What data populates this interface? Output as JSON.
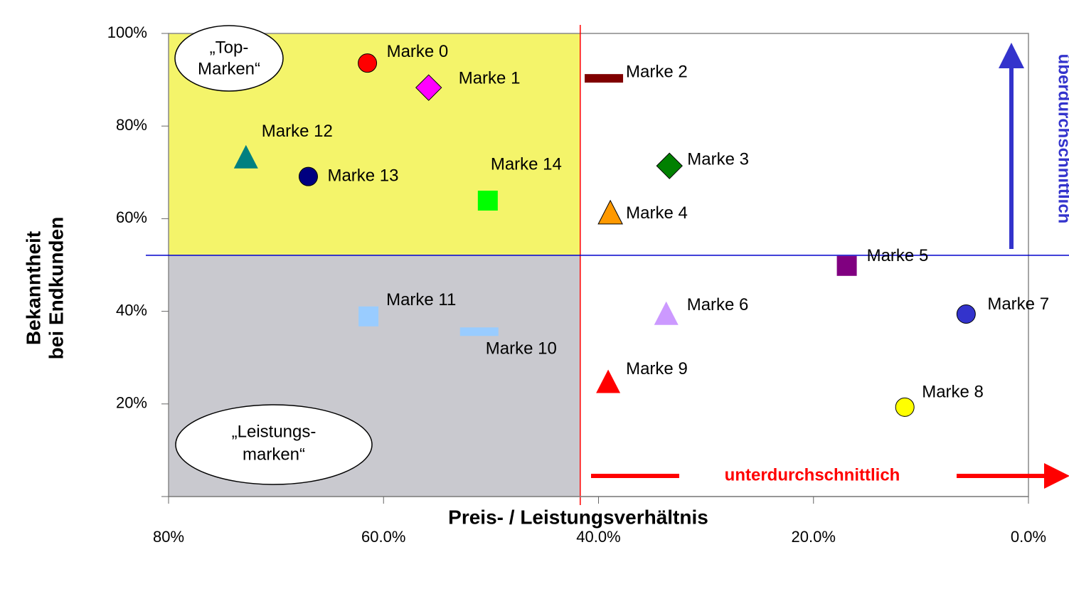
{
  "chart_data": {
    "type": "scatter",
    "x_label": "Preis- / Leistungsverhältnis",
    "y_label": [
      "Bekanntheit",
      "bei Endkunden"
    ],
    "xlim": [
      80,
      0
    ],
    "ylim": [
      0,
      100
    ],
    "xticks": [
      {
        "value": 80,
        "label": "80%"
      },
      {
        "value": 60,
        "label": "60.0%"
      },
      {
        "value": 40,
        "label": "40.0%"
      },
      {
        "value": 20,
        "label": "20.0%"
      },
      {
        "value": 0,
        "label": "0.0%"
      }
    ],
    "yticks": [
      {
        "value": 20,
        "label": "20%"
      },
      {
        "value": 40,
        "label": "40%"
      },
      {
        "value": 60,
        "label": "60%"
      },
      {
        "value": 80,
        "label": "80%"
      },
      {
        "value": 100,
        "label": "100%"
      }
    ],
    "reference_lines": {
      "x": 41.7,
      "y": 52.1,
      "x_color": "#ff0000",
      "y_color": "#0000cc"
    },
    "quadrant_colors": {
      "top_left": "#f4f46a",
      "bottom_left": "#c9c9cf"
    },
    "points": [
      {
        "name": "Marke 0",
        "x": 61.5,
        "y": 93.6,
        "marker": "circle",
        "color": "#ff0000"
      },
      {
        "name": "Marke 1",
        "x": 55.8,
        "y": 88.3,
        "marker": "diamond",
        "color": "#ff00ff"
      },
      {
        "name": "Marke 2",
        "x": 39.5,
        "y": 90.3,
        "marker": "dash",
        "color": "#800000"
      },
      {
        "name": "Marke 3",
        "x": 33.4,
        "y": 71.4,
        "marker": "diamond",
        "color": "#008000"
      },
      {
        "name": "Marke 4",
        "x": 38.9,
        "y": 61.0,
        "marker": "triangle",
        "color": "#ff9900"
      },
      {
        "name": "Marke 5",
        "x": 16.9,
        "y": 49.8,
        "marker": "square",
        "color": "#800080"
      },
      {
        "name": "Marke 6",
        "x": 33.7,
        "y": 39.2,
        "marker": "triangle",
        "color": "#cc99ff"
      },
      {
        "name": "Marke 7",
        "x": 5.8,
        "y": 39.4,
        "marker": "circle",
        "color": "#3333cc"
      },
      {
        "name": "Marke 8",
        "x": 11.5,
        "y": 19.3,
        "marker": "circle",
        "color": "#ffff00"
      },
      {
        "name": "Marke 9",
        "x": 39.1,
        "y": 24.5,
        "marker": "triangle",
        "color": "#ff0000"
      },
      {
        "name": "Marke 10",
        "x": 51.1,
        "y": 35.6,
        "marker": "dash",
        "color": "#99ccff"
      },
      {
        "name": "Marke 11",
        "x": 61.4,
        "y": 38.9,
        "marker": "square",
        "color": "#99ccff"
      },
      {
        "name": "Marke 12",
        "x": 72.8,
        "y": 73.0,
        "marker": "triangle",
        "color": "#008080"
      },
      {
        "name": "Marke 13",
        "x": 67.0,
        "y": 69.1,
        "marker": "circle",
        "color": "#000080"
      },
      {
        "name": "Marke 14",
        "x": 50.3,
        "y": 63.9,
        "marker": "square",
        "color": "#00ff00"
      }
    ],
    "annotations": {
      "top": [
        "„Top-",
        "Marken“"
      ],
      "bottom": [
        "„Leistungs-",
        "marken“"
      ],
      "x_arrow": "unterdurchschnittlich",
      "y_arrow": "überdurchschnittlich"
    }
  }
}
